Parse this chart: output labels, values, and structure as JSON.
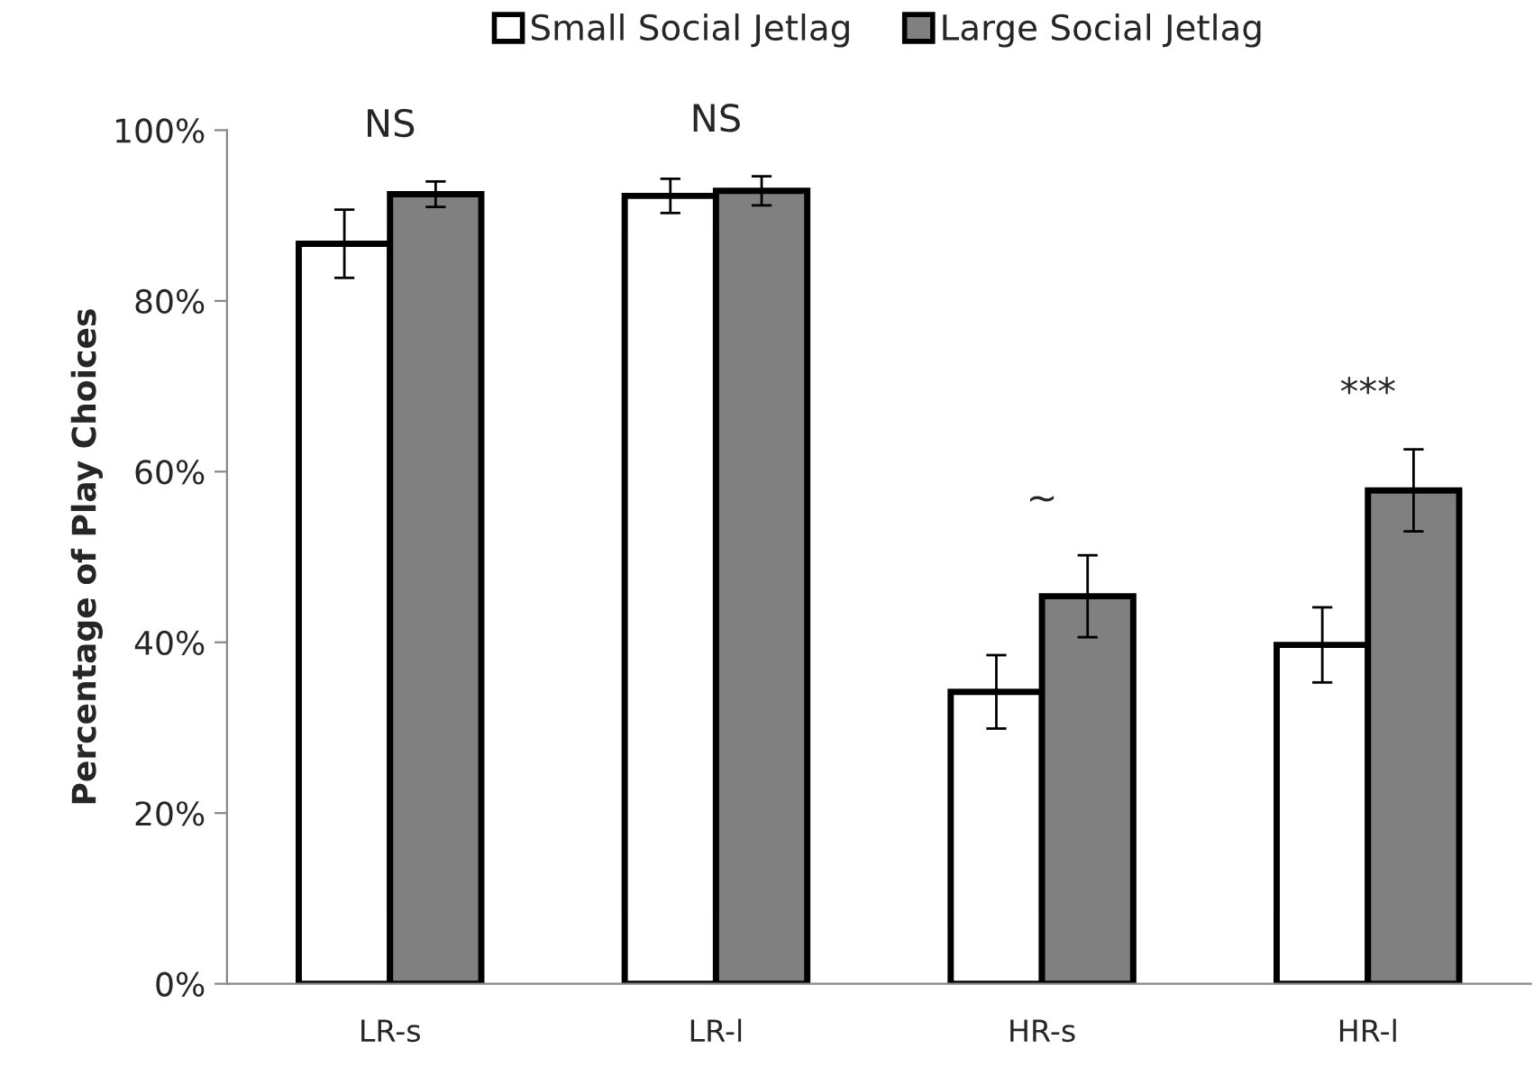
{
  "chart_data": {
    "type": "bar",
    "ylabel": "Percentage of Play Choices",
    "categories": [
      "LR-s",
      "LR-l",
      "HR-s",
      "HR-l"
    ],
    "series": [
      {
        "name": "Small Social Jetlag",
        "color": "#ffffff",
        "values": [
          86.7,
          92.3,
          34.2,
          39.7
        ],
        "errors": [
          4,
          2,
          4.3,
          4.4
        ]
      },
      {
        "name": "Large Social Jetlag",
        "color": "#808080",
        "values": [
          92.5,
          92.9,
          45.4,
          57.8
        ],
        "errors": [
          1.5,
          1.7,
          4.8,
          4.8
        ]
      }
    ],
    "ylim": [
      0,
      100
    ],
    "yticks": [
      {
        "value": 0,
        "label": "0%"
      },
      {
        "value": 20,
        "label": "20%"
      },
      {
        "value": 40,
        "label": "40%"
      },
      {
        "value": 60,
        "label": "60%"
      },
      {
        "value": 80,
        "label": "80%"
      },
      {
        "value": 100,
        "label": "100%"
      }
    ],
    "annotations": [
      "NS",
      "NS",
      "~",
      "***"
    ],
    "legend": "top",
    "grid": false
  }
}
